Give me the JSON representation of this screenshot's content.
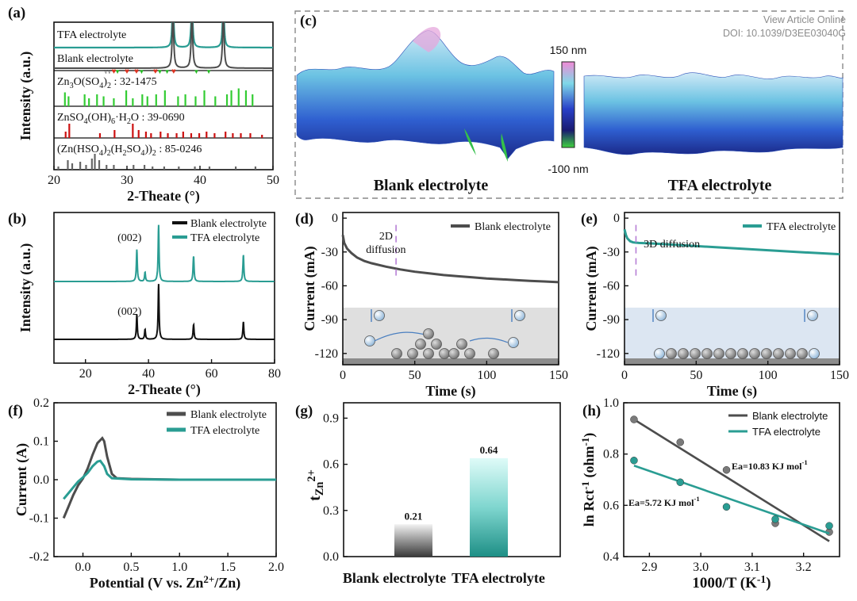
{
  "watermark": {
    "line1": "View Article Online",
    "line2": "DOI: 10.1039/D3EE03040G"
  },
  "colors": {
    "blank": "#4d4d4d",
    "tfa": "#2a9d93",
    "blank_xrd": "#111111"
  },
  "chart_data": [
    {
      "id": "a",
      "panel_label": "(a)",
      "type": "line",
      "xlabel": "2-Theate (°)",
      "ylabel": "Intensity (a.u.)",
      "xlim": [
        20,
        50
      ],
      "xticks": [
        20,
        30,
        40,
        50
      ],
      "series": [
        {
          "name": "TFA electrolyte",
          "peaks": [
            [
              36.3,
              1.0
            ],
            [
              38.9,
              1.0
            ],
            [
              43.2,
              1.0
            ]
          ]
        },
        {
          "name": "Blank electrolyte",
          "peaks": [
            [
              36.3,
              1.0
            ],
            [
              38.9,
              1.0
            ],
            [
              43.2,
              1.0
            ]
          ]
        }
      ],
      "references": [
        {
          "name": "Zn3O(SO4)2 : 32-1475",
          "color": "#33cc33",
          "sticks": [
            [
              21.5,
              0.7
            ],
            [
              22.0,
              0.5
            ],
            [
              24.2,
              0.6
            ],
            [
              24.8,
              0.4
            ],
            [
              25.9,
              0.6
            ],
            [
              26.8,
              0.5
            ],
            [
              28.2,
              0.4
            ],
            [
              29.9,
              0.8
            ],
            [
              30.8,
              0.4
            ],
            [
              32.1,
              0.6
            ],
            [
              32.8,
              0.5
            ],
            [
              34.0,
              0.6
            ],
            [
              35.2,
              0.8
            ],
            [
              37.0,
              0.5
            ],
            [
              38.0,
              0.6
            ],
            [
              39.4,
              0.5
            ],
            [
              40.6,
              0.8
            ],
            [
              42.1,
              0.5
            ],
            [
              43.7,
              0.6
            ],
            [
              44.3,
              0.8
            ],
            [
              45.3,
              0.9
            ],
            [
              46.3,
              0.8
            ],
            [
              47.2,
              0.6
            ]
          ]
        },
        {
          "name": "ZnSO4(OH)6·H2O : 39-0690",
          "color": "#cc1111",
          "sticks": [
            [
              21.6,
              0.4
            ],
            [
              22.1,
              0.9
            ],
            [
              26.3,
              0.3
            ],
            [
              28.3,
              0.5
            ],
            [
              30.8,
              0.9
            ],
            [
              31.6,
              0.5
            ],
            [
              32.6,
              0.4
            ],
            [
              33.3,
              0.3
            ],
            [
              34.6,
              0.4
            ],
            [
              35.6,
              0.3
            ],
            [
              36.8,
              0.3
            ],
            [
              37.7,
              0.4
            ],
            [
              38.8,
              0.3
            ],
            [
              39.9,
              0.3
            ],
            [
              40.9,
              0.4
            ],
            [
              42.0,
              0.3
            ],
            [
              43.5,
              0.4
            ],
            [
              44.5,
              0.3
            ],
            [
              45.6,
              0.3
            ],
            [
              46.9,
              0.3
            ],
            [
              48.5,
              0.2
            ]
          ]
        },
        {
          "name": "(Zn(HSO4)2(H2SO4))2 : 85-0246",
          "color": "#666666",
          "sticks": [
            [
              20.6,
              0.2
            ],
            [
              21.9,
              0.6
            ],
            [
              22.5,
              0.4
            ],
            [
              23.6,
              0.5
            ],
            [
              24.4,
              0.3
            ],
            [
              25.2,
              0.7
            ],
            [
              25.6,
              1.0
            ],
            [
              26.2,
              0.6
            ],
            [
              27.2,
              0.3
            ],
            [
              28.2,
              0.3
            ],
            [
              30.9,
              0.3
            ],
            [
              32.4,
              0.3
            ],
            [
              33.5,
              0.2
            ],
            [
              35.1,
              0.2
            ],
            [
              37.1,
              0.2
            ],
            [
              39.3,
              0.2
            ],
            [
              41.3,
              0.2
            ],
            [
              44.9,
              0.2
            ],
            [
              47.6,
              0.2
            ]
          ]
        }
      ],
      "markers": {
        "v_gray": [
          27.1,
          27.6
        ],
        "heart_red": [
          28.2,
          30.0,
          31.3,
          33.9,
          36.4
        ],
        "v_green": [
          28.7,
          32.0,
          34.5,
          35.5,
          39.5,
          41.2
        ]
      }
    },
    {
      "id": "b",
      "panel_label": "(b)",
      "type": "line",
      "xlabel": "2-Theate (°)",
      "ylabel": "Intensity (a.u.)",
      "xlim": [
        10,
        80
      ],
      "xticks": [
        20,
        40,
        60,
        80
      ],
      "legend": "top-right",
      "series": [
        {
          "name": "Blank electrolyte",
          "peaks": [
            [
              36.3,
              0.45
            ],
            [
              38.9,
              0.18
            ],
            [
              43.2,
              1.0
            ],
            [
              54.3,
              0.27
            ],
            [
              70.1,
              0.32
            ]
          ]
        },
        {
          "name": "TFA electrolyte",
          "peaks": [
            [
              36.3,
              0.62
            ],
            [
              38.9,
              0.18
            ],
            [
              43.2,
              1.1
            ],
            [
              54.3,
              0.5
            ],
            [
              70.1,
              0.52
            ]
          ]
        }
      ],
      "annotations": [
        "(002)",
        "(002)"
      ]
    },
    {
      "id": "c",
      "panel_label": "(c)",
      "type": "heatmap",
      "colorbar_max": "150 nm",
      "colorbar_min": "-100 nm",
      "image_labels": [
        "Blank electrolyte",
        "TFA electrolyte"
      ]
    },
    {
      "id": "d",
      "panel_label": "(d)",
      "type": "line",
      "xlabel": "Time (s)",
      "ylabel": "Current (mA)",
      "xlim": [
        0,
        150
      ],
      "ylim": [
        -130,
        5
      ],
      "xticks": [
        0,
        50,
        100,
        150
      ],
      "yticks": [
        0,
        -30,
        -60,
        -90,
        -120
      ],
      "legend": "top-right",
      "series": [
        {
          "name": "Blank electrolyte",
          "x": [
            0,
            1,
            3,
            6,
            10,
            15,
            20,
            30,
            40,
            50,
            60,
            70,
            80,
            90,
            100,
            110,
            120,
            130,
            140,
            150
          ],
          "y": [
            -15,
            -22,
            -27,
            -31,
            -35,
            -38,
            -40,
            -43,
            -45.5,
            -47.5,
            -49,
            -50.5,
            -51.5,
            -52.5,
            -53.5,
            -54.2,
            -55,
            -55.6,
            -56.2,
            -56.8
          ]
        }
      ],
      "annotation": "2D\ndiffusion",
      "marker_x": 37
    },
    {
      "id": "e",
      "panel_label": "(e)",
      "type": "line",
      "xlabel": "Time (s)",
      "ylabel": "Current (mA)",
      "xlim": [
        0,
        150
      ],
      "ylim": [
        -130,
        5
      ],
      "xticks": [
        0,
        50,
        100,
        150
      ],
      "yticks": [
        0,
        -30,
        -60,
        -90,
        -120
      ],
      "legend": "top-right",
      "series": [
        {
          "name": "TFA electrolyte",
          "x": [
            0,
            1,
            2,
            4,
            6,
            10,
            20,
            40,
            60,
            80,
            100,
            120,
            150
          ],
          "y": [
            -10,
            -15,
            -18,
            -20.5,
            -21.5,
            -22,
            -22.5,
            -24,
            -25.5,
            -27,
            -28.5,
            -30,
            -32
          ]
        }
      ],
      "annotation": "3D diffusion",
      "marker_x": 8
    },
    {
      "id": "f",
      "panel_label": "(f)",
      "type": "line",
      "xlabel": "Potential (V vs. Zn2+/Zn)",
      "ylabel": "Current (A)",
      "xlim": [
        -0.3,
        2.0
      ],
      "ylim": [
        -0.2,
        0.2
      ],
      "xticks": [
        0.0,
        0.5,
        1.0,
        1.5,
        2.0
      ],
      "yticks": [
        0.2,
        0.1,
        0.0,
        -0.1,
        -0.2
      ],
      "legend": "top-right",
      "series": [
        {
          "name": "Blank electrolyte",
          "x": [
            -0.2,
            -0.15,
            -0.1,
            -0.05,
            0.0,
            0.05,
            0.1,
            0.15,
            0.2,
            0.22,
            0.25,
            0.3,
            0.35,
            0.5,
            1.0,
            2.0
          ],
          "y": [
            -0.1,
            -0.07,
            -0.04,
            -0.015,
            0.003,
            0.03,
            0.065,
            0.095,
            0.108,
            0.1,
            0.06,
            0.015,
            0.004,
            0.002,
            0.0,
            0.0
          ]
        },
        {
          "name": "TFA electrolyte",
          "x": [
            -0.2,
            -0.15,
            -0.1,
            -0.05,
            0.0,
            0.05,
            0.1,
            0.15,
            0.18,
            0.22,
            0.25,
            0.3,
            0.5,
            1.0,
            2.0
          ],
          "y": [
            -0.05,
            -0.035,
            -0.02,
            -0.005,
            0.006,
            0.018,
            0.035,
            0.047,
            0.049,
            0.035,
            0.015,
            0.004,
            0.001,
            0.0,
            0.0
          ]
        }
      ]
    },
    {
      "id": "g",
      "panel_label": "(g)",
      "type": "bar",
      "ylabel": "tZn2+",
      "categories": [
        "Blank electrolyte",
        "TFA electrolyte"
      ],
      "values": [
        0.21,
        0.64
      ],
      "value_labels": [
        "0.21",
        "0.64"
      ],
      "ylim": [
        0,
        1.0
      ],
      "yticks": [
        0.0,
        0.3,
        0.6,
        0.9
      ]
    },
    {
      "id": "h",
      "panel_label": "(h)",
      "type": "scatter",
      "xlabel": "1000/T (K-1)",
      "ylabel": "ln Rct-1 (ohm-1)",
      "xlim": [
        2.85,
        3.27
      ],
      "ylim": [
        0.4,
        1.0
      ],
      "xticks": [
        2.9,
        3.0,
        3.1,
        3.2
      ],
      "yticks": [
        0.4,
        0.6,
        0.8,
        1.0
      ],
      "legend": "top-right",
      "series": [
        {
          "name": "Blank electrolyte",
          "x": [
            2.87,
            2.96,
            3.05,
            3.145,
            3.25
          ],
          "y": [
            0.935,
            0.846,
            0.738,
            0.53,
            0.496
          ],
          "fit": [
            [
              2.87,
              0.935
            ],
            [
              3.25,
              0.46
            ]
          ]
        },
        {
          "name": "TFA electrolyte",
          "x": [
            2.87,
            2.96,
            3.05,
            3.145,
            3.25
          ],
          "y": [
            0.775,
            0.69,
            0.594,
            0.546,
            0.52
          ],
          "fit": [
            [
              2.87,
              0.755
            ],
            [
              3.25,
              0.49
            ]
          ]
        }
      ],
      "annotations": [
        "Ea=10.83 KJ mol-1",
        "Ea=5.72 KJ mol-1"
      ]
    }
  ]
}
